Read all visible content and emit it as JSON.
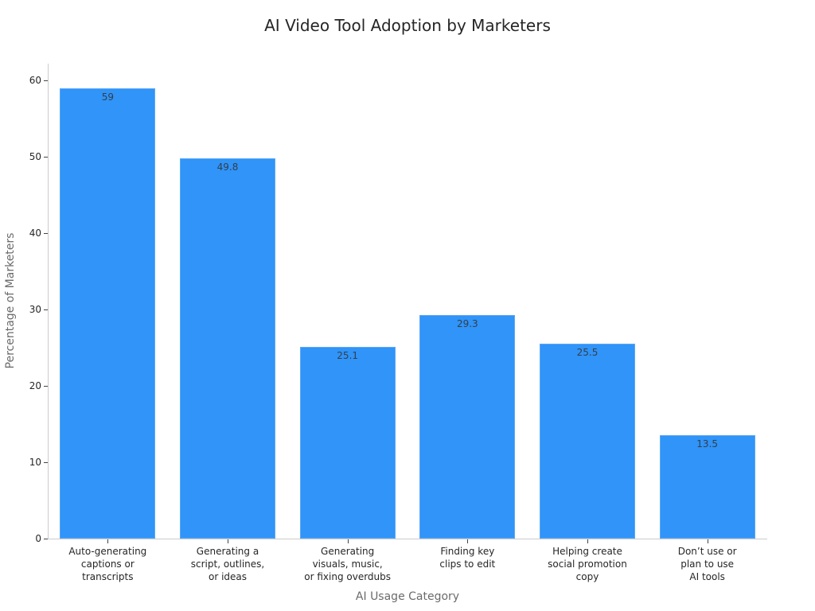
{
  "chart_data": {
    "type": "bar",
    "title": "AI Video Tool Adoption by Marketers",
    "xlabel": "AI Usage Category",
    "ylabel": "Percentage of Marketers",
    "ylim": [
      0,
      62
    ],
    "yticks": [
      0,
      10,
      20,
      30,
      40,
      50,
      60
    ],
    "grid": false,
    "legend": null,
    "bar_color": "#3094f8",
    "categories": [
      "Auto-generating\ncaptions or\ntranscripts",
      "Generating a\nscript, outlines,\nor ideas",
      "Generating\nvisuals, music,\nor fixing overdubs",
      "Finding key\nclips to edit",
      "Helping create\nsocial promotion\ncopy",
      "Don’t use or\nplan to use\nAI tools"
    ],
    "values": [
      59,
      49.8,
      25.1,
      29.3,
      25.5,
      13.5
    ],
    "value_labels": [
      "59",
      "49.8",
      "25.1",
      "29.3",
      "25.5",
      "13.5"
    ]
  }
}
